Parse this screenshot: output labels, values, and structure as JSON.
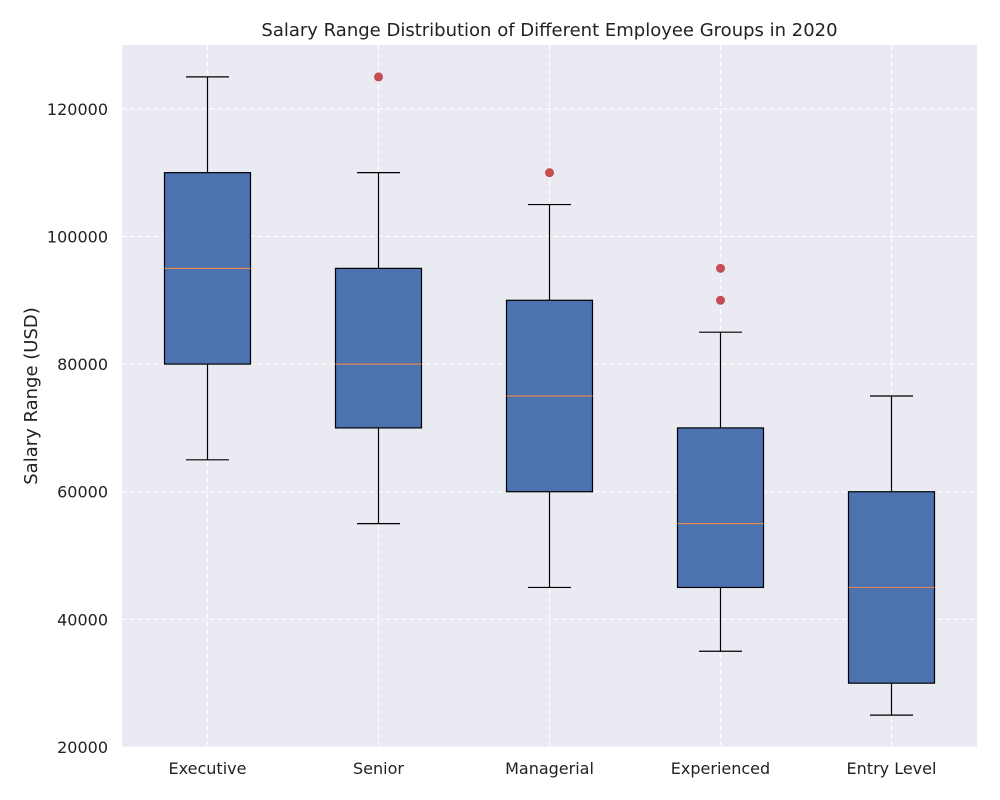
{
  "chart_data": {
    "type": "box",
    "title": "Salary Range Distribution of Different Employee Groups in 2020",
    "xlabel": "",
    "ylabel": "Salary Range (USD)",
    "ylim": [
      20000,
      130000
    ],
    "yticks": [
      20000,
      40000,
      60000,
      80000,
      100000,
      120000
    ],
    "ytick_labels": [
      "20000",
      "40000",
      "60000",
      "80000",
      "100000",
      "120000"
    ],
    "grid": true,
    "categories": [
      "Executive",
      "Senior",
      "Managerial",
      "Experienced",
      "Entry Level"
    ],
    "boxes": [
      {
        "category": "Executive",
        "min": 65000,
        "q1": 80000,
        "median": 95000,
        "q3": 110000,
        "max": 125000,
        "outliers": []
      },
      {
        "category": "Senior",
        "min": 55000,
        "q1": 70000,
        "median": 80000,
        "q3": 95000,
        "max": 110000,
        "outliers": [
          125000
        ]
      },
      {
        "category": "Managerial",
        "min": 45000,
        "q1": 60000,
        "median": 75000,
        "q3": 90000,
        "max": 105000,
        "outliers": [
          110000
        ]
      },
      {
        "category": "Experienced",
        "min": 35000,
        "q1": 45000,
        "median": 55000,
        "q3": 70000,
        "max": 85000,
        "outliers": [
          90000,
          95000
        ]
      },
      {
        "category": "Entry Level",
        "min": 25000,
        "q1": 30000,
        "median": 45000,
        "q3": 60000,
        "max": 75000,
        "outliers": []
      }
    ],
    "colors": {
      "box_fill": "#4c72b0",
      "box_edge": "#000000",
      "median": "#dd8452",
      "outlier": "#c44e52",
      "plot_bg": "#eaeaf2",
      "grid": "#ffffff"
    }
  }
}
